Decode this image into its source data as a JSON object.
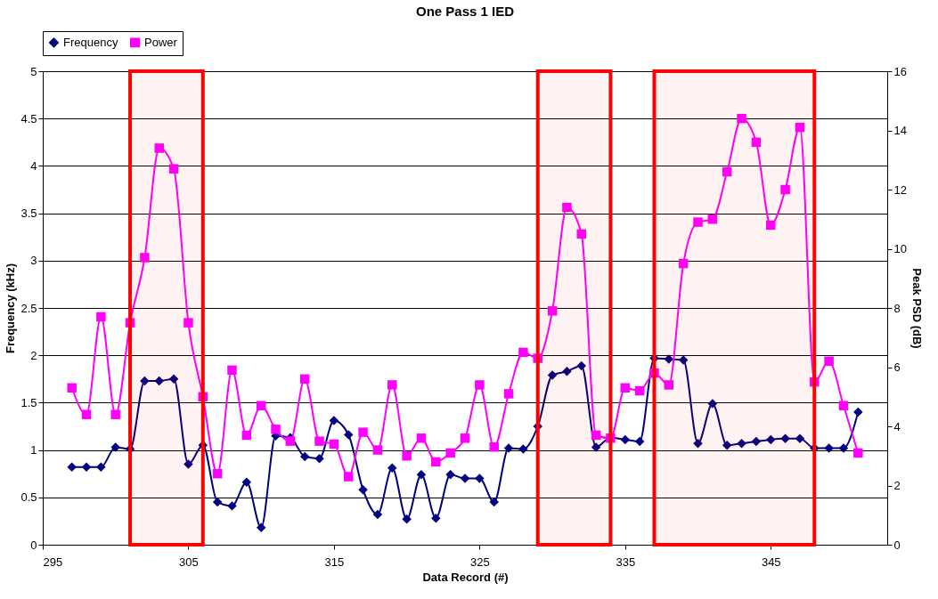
{
  "chart_data": {
    "type": "line",
    "title": "One Pass 1 IED",
    "xlabel": "Data Record (#)",
    "ylabel": "Frequency (kHz)",
    "y2label": "Peak PSD (dB)",
    "x": [
      297,
      298,
      299,
      300,
      301,
      302,
      303,
      304,
      305,
      306,
      307,
      308,
      309,
      310,
      311,
      312,
      313,
      314,
      315,
      316,
      317,
      318,
      319,
      320,
      321,
      322,
      323,
      324,
      325,
      326,
      327,
      328,
      329,
      330,
      331,
      332,
      333,
      334,
      335,
      336,
      337,
      338,
      339,
      340,
      341,
      342,
      343,
      344,
      345,
      346,
      347,
      348,
      349,
      350,
      351
    ],
    "series": [
      {
        "name": "Frequency",
        "color": "#000080",
        "marker": "diamond",
        "values": [
          0.82,
          0.82,
          0.82,
          1.03,
          1.01,
          1.73,
          1.73,
          1.75,
          0.85,
          1.05,
          0.45,
          0.41,
          0.66,
          0.18,
          1.15,
          1.13,
          0.93,
          0.91,
          1.31,
          1.16,
          0.58,
          0.32,
          0.81,
          0.27,
          0.74,
          0.28,
          0.74,
          0.7,
          0.7,
          0.45,
          1.02,
          1.01,
          1.25,
          1.79,
          1.83,
          1.89,
          1.03,
          1.13,
          1.11,
          1.09,
          1.97,
          1.96,
          1.95,
          1.07,
          1.49,
          1.05,
          1.07,
          1.09,
          1.11,
          1.12,
          1.12,
          1.02,
          1.02,
          1.02,
          1.4
        ]
      },
      {
        "name": "Power",
        "color": "#ff00ff",
        "marker": "square",
        "axis": "y2",
        "values": [
          5.3,
          4.4,
          7.7,
          4.4,
          7.5,
          9.7,
          13.4,
          12.7,
          7.5,
          5.0,
          2.4,
          5.9,
          3.7,
          4.7,
          3.9,
          3.5,
          5.6,
          3.5,
          3.4,
          2.3,
          3.8,
          3.2,
          5.4,
          3.0,
          3.6,
          2.8,
          3.1,
          3.6,
          5.4,
          3.3,
          5.1,
          6.5,
          6.3,
          7.9,
          11.4,
          10.5,
          3.7,
          3.6,
          5.3,
          5.2,
          5.8,
          5.4,
          9.5,
          10.9,
          11.0,
          12.6,
          14.4,
          13.6,
          10.8,
          12.0,
          14.1,
          5.5,
          6.2,
          4.7,
          3.1
        ]
      }
    ],
    "xlim": [
      295,
      353
    ],
    "xticks": [
      295,
      305,
      315,
      325,
      335,
      345
    ],
    "ylim": [
      0,
      5
    ],
    "yticks": [
      0,
      0.5,
      1,
      1.5,
      2,
      2.5,
      3,
      3.5,
      4,
      4.5,
      5
    ],
    "y2lim": [
      0,
      16
    ],
    "y2ticks": [
      0,
      2,
      4,
      6,
      8,
      10,
      12,
      14,
      16
    ],
    "bands": [
      {
        "axis": "x",
        "from": 301,
        "to": 306,
        "color": "#ff0000"
      },
      {
        "axis": "x",
        "from": 329,
        "to": 334,
        "color": "#ff0000"
      },
      {
        "axis": "x",
        "from": 337,
        "to": 348,
        "color": "#ff0000"
      }
    ],
    "grid": "y",
    "legend": "top"
  }
}
